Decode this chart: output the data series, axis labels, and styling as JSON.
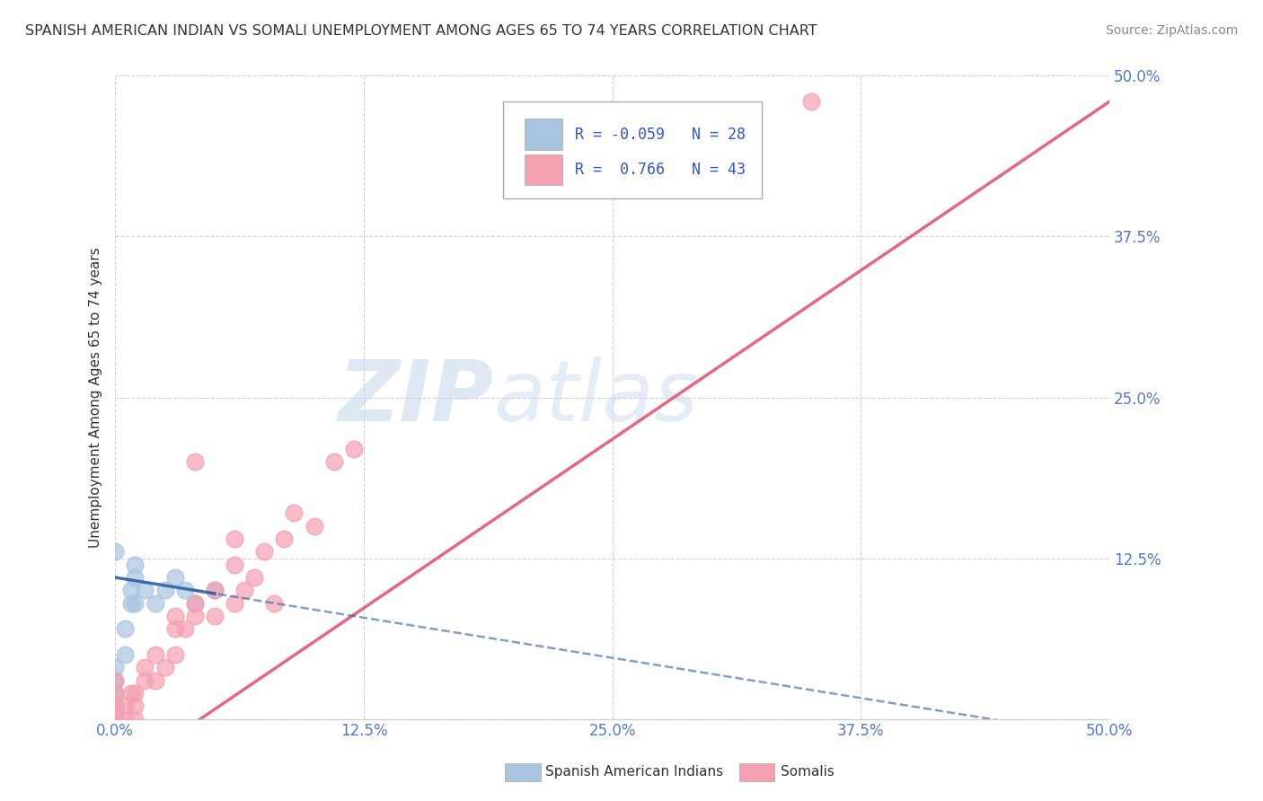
{
  "title": "SPANISH AMERICAN INDIAN VS SOMALI UNEMPLOYMENT AMONG AGES 65 TO 74 YEARS CORRELATION CHART",
  "source": "Source: ZipAtlas.com",
  "ylabel": "Unemployment Among Ages 65 to 74 years",
  "xlim": [
    0,
    0.5
  ],
  "ylim": [
    0,
    0.5
  ],
  "xticks": [
    0.0,
    0.125,
    0.25,
    0.375,
    0.5
  ],
  "xticklabels": [
    "0.0%",
    "12.5%",
    "25.0%",
    "37.5%",
    "50.0%"
  ],
  "yticks": [
    0.0,
    0.125,
    0.25,
    0.375,
    0.5
  ],
  "yticklabels": [
    "",
    "12.5%",
    "25.0%",
    "37.5%",
    "50.0%"
  ],
  "blue_R": -0.059,
  "blue_N": 28,
  "pink_R": 0.766,
  "pink_N": 43,
  "blue_color": "#a8c4e0",
  "pink_color": "#f4a0b0",
  "blue_line_color": "#3060a0",
  "pink_line_color": "#e05878",
  "watermark_zip": "ZIP",
  "watermark_atlas": "atlas",
  "background_color": "#ffffff",
  "grid_color": "#cccccc",
  "blue_scatter_x": [
    0.0,
    0.0,
    0.0,
    0.0,
    0.0,
    0.0,
    0.0,
    0.0,
    0.0,
    0.0,
    0.0,
    0.0,
    0.005,
    0.005,
    0.008,
    0.008,
    0.01,
    0.01,
    0.01,
    0.015,
    0.02,
    0.025,
    0.03,
    0.035,
    0.04,
    0.05,
    0.0,
    0.0
  ],
  "blue_scatter_y": [
    0.0,
    0.0,
    0.0,
    0.0,
    0.0,
    0.005,
    0.005,
    0.01,
    0.01,
    0.02,
    0.02,
    0.03,
    0.05,
    0.07,
    0.09,
    0.1,
    0.09,
    0.11,
    0.12,
    0.1,
    0.09,
    0.1,
    0.11,
    0.1,
    0.09,
    0.1,
    0.13,
    0.04
  ],
  "pink_scatter_x": [
    0.0,
    0.0,
    0.0,
    0.0,
    0.0,
    0.0,
    0.0,
    0.0,
    0.0,
    0.0,
    0.005,
    0.005,
    0.008,
    0.01,
    0.01,
    0.01,
    0.015,
    0.015,
    0.02,
    0.02,
    0.025,
    0.03,
    0.03,
    0.03,
    0.035,
    0.04,
    0.04,
    0.04,
    0.05,
    0.05,
    0.06,
    0.06,
    0.06,
    0.065,
    0.07,
    0.075,
    0.08,
    0.085,
    0.09,
    0.1,
    0.11,
    0.12,
    0.35
  ],
  "pink_scatter_y": [
    0.0,
    0.0,
    0.0,
    0.0,
    0.005,
    0.005,
    0.01,
    0.01,
    0.02,
    0.03,
    0.0,
    0.01,
    0.02,
    0.0,
    0.01,
    0.02,
    0.03,
    0.04,
    0.03,
    0.05,
    0.04,
    0.05,
    0.07,
    0.08,
    0.07,
    0.08,
    0.09,
    0.2,
    0.08,
    0.1,
    0.09,
    0.12,
    0.14,
    0.1,
    0.11,
    0.13,
    0.09,
    0.14,
    0.16,
    0.15,
    0.2,
    0.21,
    0.48
  ],
  "legend_label_blue": "Spanish American Indians",
  "legend_label_pink": "Somalis"
}
